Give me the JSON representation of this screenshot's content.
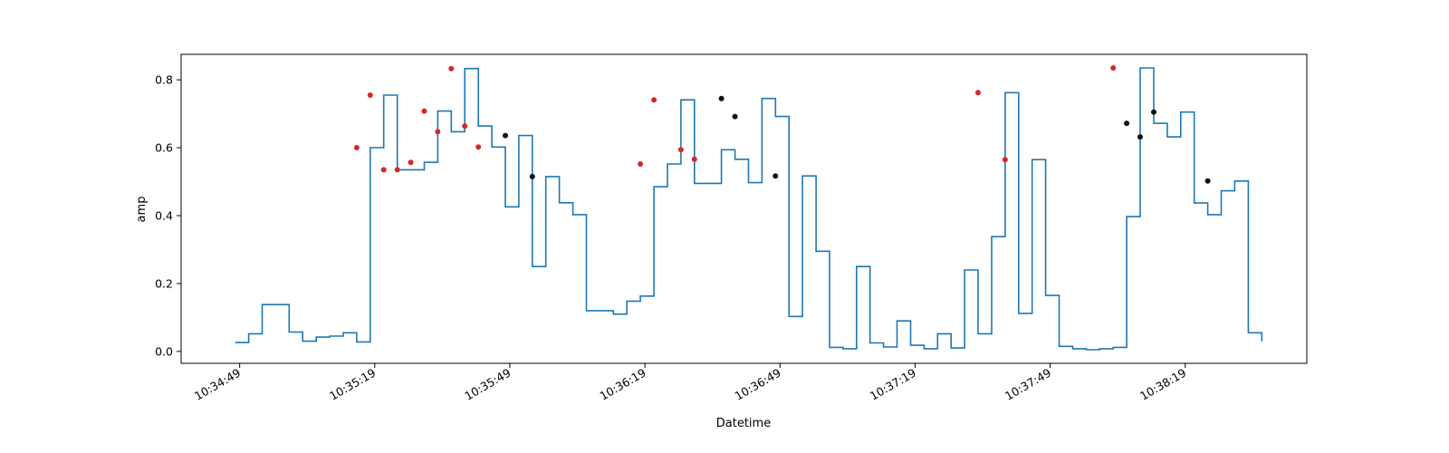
{
  "chart_data": {
    "type": "line",
    "title": "",
    "xlabel": "Datetime",
    "ylabel": "amp",
    "x_tick_labels": [
      "10:34:49",
      "10:35:19",
      "10:35:49",
      "10:36:19",
      "10:36:49",
      "10:37:19",
      "10:37:49",
      "10:38:19"
    ],
    "x_ticks": [
      "10:34:49",
      "10:35:19",
      "10:35:49",
      "10:36:19",
      "10:36:49",
      "10:37:19",
      "10:37:49",
      "10:38:19"
    ],
    "xlim": [
      "10:34:36",
      "10:38:46"
    ],
    "y_ticks": [
      0.0,
      0.2,
      0.4,
      0.6,
      0.8
    ],
    "y_tick_labels": [
      "0.0",
      "0.2",
      "0.4",
      "0.6",
      "0.8"
    ],
    "ylim": [
      -0.035,
      0.875
    ],
    "grid": false,
    "line_color": "#1f77b4",
    "step_series": {
      "style": "step-post",
      "x": [
        "10:34:48",
        "10:34:51",
        "10:34:54",
        "10:34:57",
        "10:35:00",
        "10:35:03",
        "10:35:06",
        "10:35:09",
        "10:35:12",
        "10:35:15",
        "10:35:18",
        "10:35:21",
        "10:35:24",
        "10:35:27",
        "10:35:30",
        "10:35:33",
        "10:35:36",
        "10:35:39",
        "10:35:42",
        "10:35:45",
        "10:35:48",
        "10:35:51",
        "10:35:54",
        "10:35:57",
        "10:36:00",
        "10:36:03",
        "10:36:06",
        "10:36:09",
        "10:36:12",
        "10:36:15",
        "10:36:18",
        "10:36:21",
        "10:36:24",
        "10:36:27",
        "10:36:30",
        "10:36:33",
        "10:36:36",
        "10:36:39",
        "10:36:42",
        "10:36:45",
        "10:36:48",
        "10:36:51",
        "10:36:54",
        "10:36:57",
        "10:37:00",
        "10:37:03",
        "10:37:06",
        "10:37:09",
        "10:37:12",
        "10:37:15",
        "10:37:18",
        "10:37:21",
        "10:37:24",
        "10:37:27",
        "10:37:30",
        "10:37:33",
        "10:37:36",
        "10:37:39",
        "10:37:42",
        "10:37:45",
        "10:37:48",
        "10:37:51",
        "10:37:54",
        "10:37:57",
        "10:38:00",
        "10:38:03",
        "10:38:06",
        "10:38:09",
        "10:38:12",
        "10:38:15",
        "10:38:18",
        "10:38:21",
        "10:38:24",
        "10:38:27",
        "10:38:30",
        "10:38:33"
      ],
      "y": [
        0.026,
        0.052,
        0.138,
        0.138,
        0.057,
        0.03,
        0.042,
        0.045,
        0.055,
        0.028,
        0.6,
        0.755,
        0.535,
        0.535,
        0.557,
        0.708,
        0.647,
        0.833,
        0.664,
        0.602,
        0.426,
        0.636,
        0.25,
        0.515,
        0.438,
        0.403,
        0.12,
        0.12,
        0.11,
        0.148,
        0.163,
        0.485,
        0.552,
        0.741,
        0.495,
        0.495,
        0.594,
        0.566,
        0.497,
        0.745,
        0.692,
        0.103,
        0.517,
        0.295,
        0.012,
        0.008,
        0.25,
        0.025,
        0.013,
        0.09,
        0.018,
        0.008,
        0.052,
        0.01,
        0.24,
        0.052,
        0.338,
        0.762,
        0.112,
        0.565,
        0.165,
        0.015,
        0.008,
        0.005,
        0.008,
        0.012,
        0.397,
        0.835,
        0.672,
        0.632,
        0.705,
        0.437,
        0.403,
        0.473,
        0.502,
        0.055
      ],
      "end": {
        "x": "10:38:36",
        "y": 0.03
      }
    },
    "series": [
      {
        "color": "#d62728",
        "marker": "dot",
        "x": [
          "10:35:15",
          "10:35:18",
          "10:35:21",
          "10:35:24",
          "10:35:27",
          "10:35:30",
          "10:35:33",
          "10:35:36",
          "10:35:39",
          "10:35:42",
          "10:36:18",
          "10:36:21",
          "10:36:27",
          "10:36:30"
        ],
        "y": [
          0.6,
          0.755,
          0.535,
          0.535,
          0.557,
          0.708,
          0.647,
          0.833,
          0.664,
          0.602,
          0.552,
          0.741,
          0.594,
          0.566
        ]
      },
      {
        "color": "#d62728",
        "marker": "dot",
        "x": [
          "10:37:33",
          "10:37:39",
          "10:38:03"
        ],
        "y": [
          0.762,
          0.565,
          0.835
        ]
      },
      {
        "color": "#111111",
        "marker": "dot",
        "x": [
          "10:35:48",
          "10:35:54",
          "10:36:36",
          "10:36:39",
          "10:36:48",
          "10:38:06",
          "10:38:09",
          "10:38:12",
          "10:38:24"
        ],
        "y": [
          0.636,
          0.515,
          0.745,
          0.692,
          0.517,
          0.672,
          0.632,
          0.705,
          0.502
        ]
      }
    ]
  }
}
